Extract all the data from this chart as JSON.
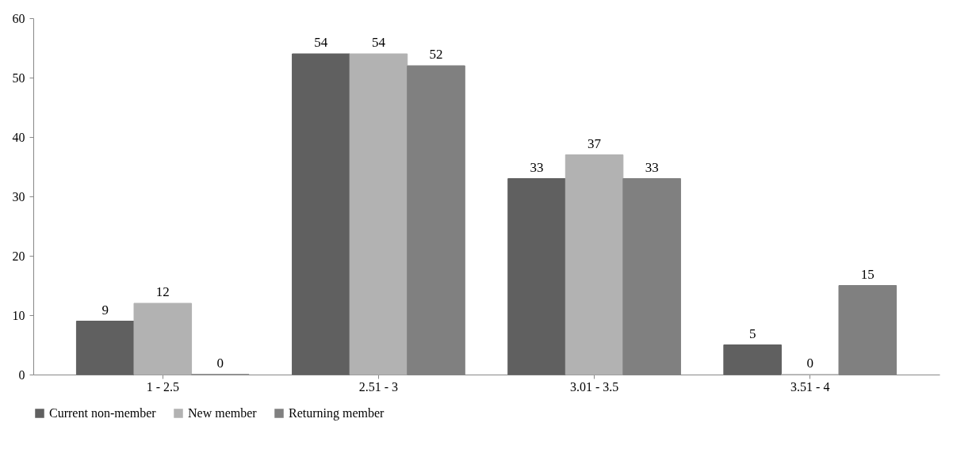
{
  "chart_data": {
    "type": "bar",
    "categories": [
      "1 - 2.5",
      "2.51 - 3",
      "3.01 - 3.5",
      "3.51 - 4"
    ],
    "series": [
      {
        "name": "Current non-member",
        "color": "#606060",
        "values": [
          9,
          54,
          33,
          5
        ]
      },
      {
        "name": "New member",
        "color": "#b2b2b2",
        "values": [
          12,
          54,
          37,
          0
        ]
      },
      {
        "name": "Returning member",
        "color": "#808080",
        "values": [
          0,
          52,
          33,
          15
        ]
      }
    ],
    "ylim": [
      0,
      60
    ],
    "yticks": [
      0,
      10,
      20,
      30,
      40,
      50,
      60
    ],
    "grid": false,
    "legend": "bottom",
    "data_labels": true
  }
}
